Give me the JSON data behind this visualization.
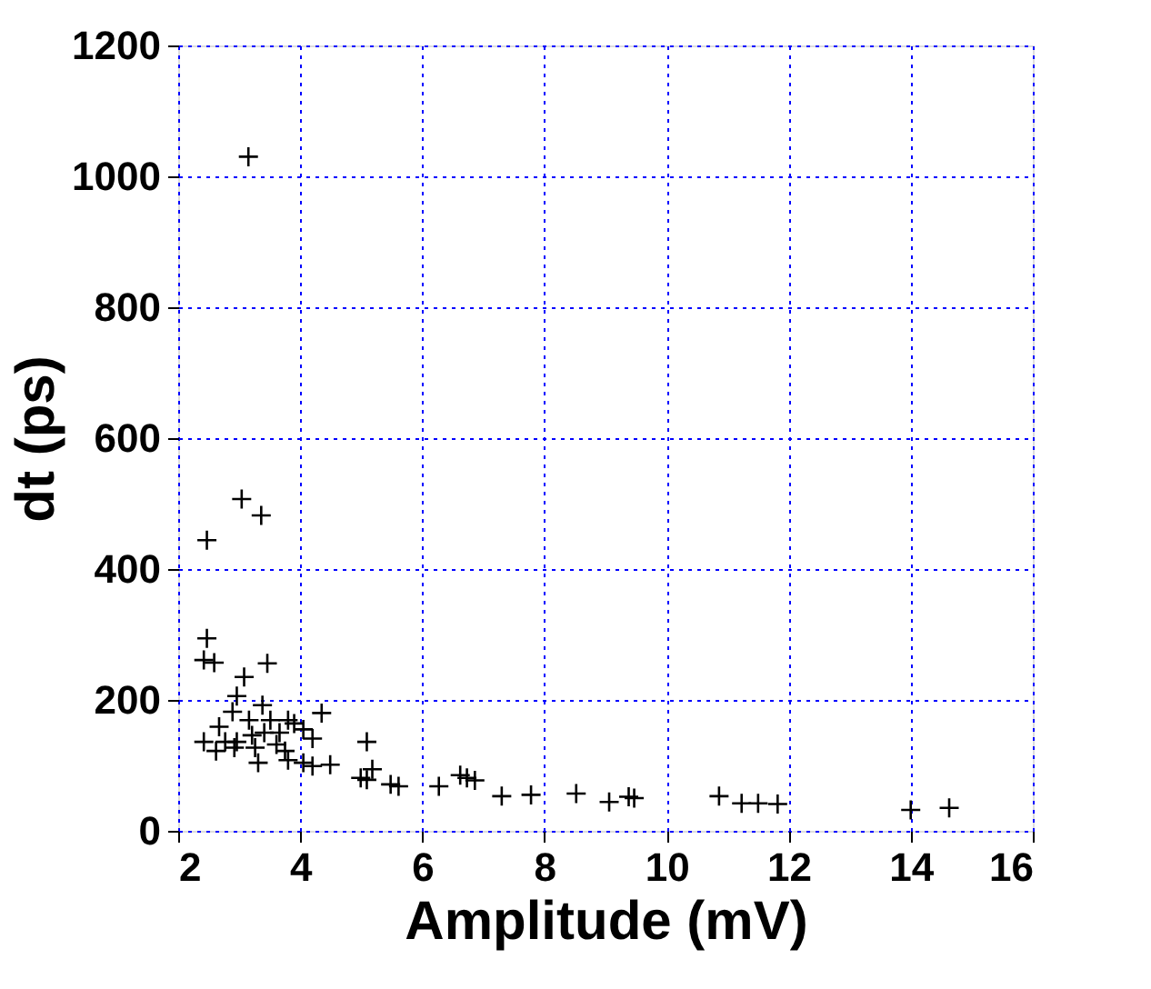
{
  "chart_data": {
    "type": "scatter",
    "xlabel": "Amplitude  (mV)",
    "ylabel": "dt (ps)",
    "xlim": [
      2,
      16
    ],
    "xticks": [
      2,
      4,
      6,
      8,
      10,
      12,
      14,
      16
    ],
    "ylim": [
      0,
      1200
    ],
    "yticks": [
      0,
      200,
      400,
      600,
      800,
      1000,
      1200
    ],
    "grid": true,
    "marker": "cross",
    "series": [
      {
        "color": "#000000",
        "x": [
          3.15,
          3.04,
          3.36,
          2.47,
          2.47,
          2.42,
          2.59,
          3.46,
          3.08,
          2.96,
          2.89,
          3.38,
          4.35,
          2.67,
          3.16,
          3.51,
          3.8,
          3.9,
          4.05,
          2.42,
          2.77,
          2.96,
          3.21,
          3.41,
          3.66,
          4.2,
          2.62,
          2.92,
          3.26,
          3.61,
          3.75,
          5.09,
          3.31,
          3.8,
          4.05,
          4.2,
          4.49,
          5.18,
          4.99,
          5.09,
          5.48,
          5.61,
          6.27,
          6.62,
          6.73,
          6.86,
          7.3,
          7.78,
          8.52,
          9.06,
          9.38,
          9.47,
          10.86,
          11.23,
          11.5,
          11.82,
          14.0,
          14.63
        ],
        "values": [
          1030,
          507,
          482,
          444,
          294,
          261,
          257,
          256,
          235,
          206,
          182,
          192,
          180,
          159,
          169,
          169,
          169,
          164,
          155,
          136,
          136,
          136,
          146,
          150,
          150,
          141,
          122,
          127,
          127,
          132,
          122,
          136,
          104,
          108,
          104,
          99,
          101,
          94,
          81,
          78,
          71,
          68,
          68,
          85,
          81,
          77,
          53,
          55,
          57,
          44,
          52,
          50,
          53,
          42,
          42,
          41,
          32,
          35
        ]
      }
    ]
  }
}
